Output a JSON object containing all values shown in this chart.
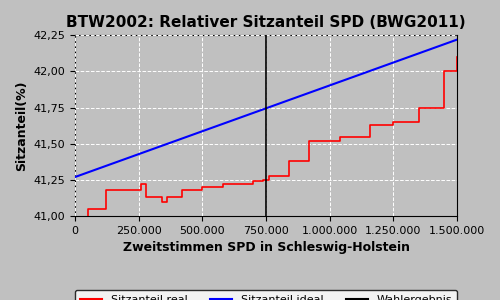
{
  "title": "BTW2002: Relativer Sitzanteil SPD (BWG2011)",
  "xlabel": "Zweitstimmen SPD in Schleswig-Holstein",
  "ylabel": "Sitzanteil(%)",
  "bg_color": "#c0c0c0",
  "plot_bg_color": "#c0c0c0",
  "xmin": 0,
  "xmax": 1500000,
  "ymin": 41.0,
  "ymax": 42.25,
  "wahlergebnis_x": 750000,
  "ideal_start_y": 41.27,
  "ideal_end_y": 42.22,
  "legend_labels": [
    "Sitzanteil real",
    "Sitzanteil ideal",
    "Wahlergebnis"
  ],
  "legend_colors": [
    "red",
    "blue",
    "black"
  ],
  "grid_color": "white",
  "yticks": [
    41.0,
    41.25,
    41.5,
    41.75,
    42.0,
    42.25
  ],
  "xticks": [
    0,
    250000,
    500000,
    750000,
    1000000,
    1250000,
    1500000
  ]
}
